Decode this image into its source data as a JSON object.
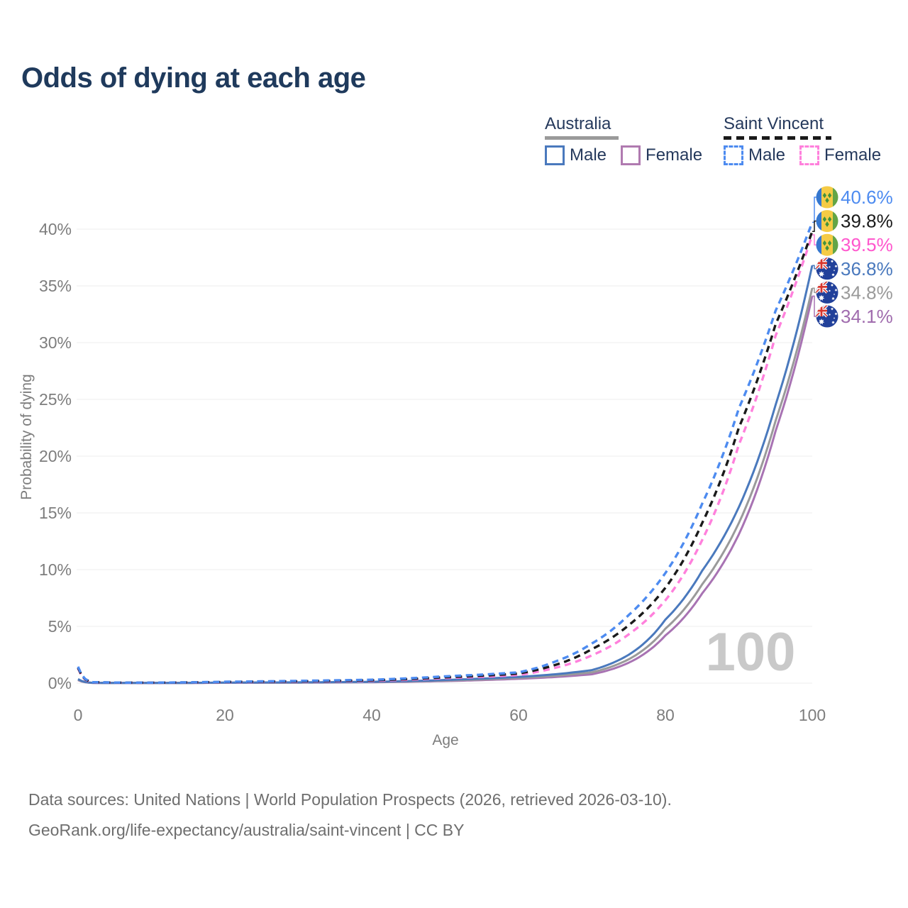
{
  "title": "Odds of dying at each age",
  "colors": {
    "title": "#1f3a5c",
    "legend_text": "#25395c",
    "axis": "#7d7d7d",
    "grid": "#ececec",
    "watermark": "#c9c9c9",
    "footer": "#6e6e6e"
  },
  "legend": {
    "groups": [
      {
        "id": "australia",
        "label": "Australia",
        "line_style": "solid",
        "line_color": "#9a9a9a",
        "items": [
          {
            "id": "au_male",
            "label": "Male",
            "color": "#4a79bd",
            "dashed": false
          },
          {
            "id": "au_female",
            "label": "Female",
            "color": "#b07ab0",
            "dashed": false
          }
        ]
      },
      {
        "id": "saint_vincent",
        "label": "Saint Vincent",
        "line_style": "dashed",
        "line_color": "#1a1a1a",
        "items": [
          {
            "id": "sv_male",
            "label": "Male",
            "color": "#4d8bf0",
            "dashed": true
          },
          {
            "id": "sv_female",
            "label": "Female",
            "color": "#ff80dc",
            "dashed": true
          }
        ]
      }
    ]
  },
  "icons": {
    "saint_vincent_flag": {
      "blue": "#3577cf",
      "yellow": "#f5cb45",
      "green": "#63a546",
      "diamond": "#44923c"
    },
    "australia_flag": {
      "blue": "#21409a",
      "red": "#d8352c",
      "white": "#ffffff"
    }
  },
  "chart_data": {
    "type": "line",
    "title": "Odds of dying at each age",
    "xlabel": "Age",
    "ylabel": "Probability of dying",
    "xlim": [
      0,
      100
    ],
    "ylim": [
      0,
      43
    ],
    "grid": true,
    "legend_position": "top-right",
    "hover_age_label": "100",
    "xticks": [
      0,
      20,
      40,
      60,
      80,
      100
    ],
    "yticks": [
      {
        "value": 0,
        "label": "0%"
      },
      {
        "value": 5,
        "label": "5%"
      },
      {
        "value": 10,
        "label": "10%"
      },
      {
        "value": 15,
        "label": "15%"
      },
      {
        "value": 20,
        "label": "20%"
      },
      {
        "value": 25,
        "label": "25%"
      },
      {
        "value": 30,
        "label": "30%"
      },
      {
        "value": 35,
        "label": "35%"
      },
      {
        "value": 40,
        "label": "40%"
      }
    ],
    "control_ages": [
      0,
      2,
      5,
      10,
      20,
      30,
      40,
      50,
      55,
      60,
      65,
      70,
      75,
      80,
      85,
      90,
      95,
      100
    ],
    "series": [
      {
        "id": "sv_male",
        "name": "Saint Vincent Male",
        "country": "Saint Vincent",
        "sex": "Male",
        "style": "dashed",
        "color": "#4d8bf0",
        "label_color": "#4d8bf0",
        "flag": "saint-vincent",
        "end_label": "40.6%",
        "values": [
          1.45,
          0.09,
          0.05,
          0.04,
          0.12,
          0.2,
          0.3,
          0.6,
          0.75,
          0.95,
          1.9,
          3.5,
          6.0,
          9.7,
          15.8,
          24.2,
          32.8,
          40.6
        ]
      },
      {
        "id": "sv_combined",
        "name": "Saint Vincent Both sexes",
        "country": "Saint Vincent",
        "sex": "Both",
        "style": "dashed",
        "color": "#1a1a1a",
        "label_color": "#1a1a1a",
        "flag": "saint-vincent",
        "end_label": "39.8%",
        "values": [
          1.35,
          0.08,
          0.045,
          0.035,
          0.1,
          0.16,
          0.25,
          0.52,
          0.65,
          0.85,
          1.6,
          3.0,
          5.1,
          8.4,
          14.1,
          22.5,
          31.6,
          39.8
        ]
      },
      {
        "id": "sv_female",
        "name": "Saint Vincent Female",
        "country": "Saint Vincent",
        "sex": "Female",
        "style": "dashed",
        "color": "#ff80dc",
        "label_color": "#ff57cd",
        "flag": "saint-vincent",
        "end_label": "39.5%",
        "values": [
          1.3,
          0.07,
          0.04,
          0.03,
          0.08,
          0.13,
          0.2,
          0.45,
          0.55,
          0.72,
          1.35,
          2.45,
          4.3,
          7.3,
          12.6,
          21.0,
          30.6,
          39.5
        ]
      },
      {
        "id": "au_male",
        "name": "Australia Male",
        "country": "Australia",
        "sex": "Male",
        "style": "solid",
        "color": "#4a79bd",
        "label_color": "#4a79bd",
        "flag": "australia",
        "end_label": "36.8%",
        "values": [
          0.35,
          0.03,
          0.015,
          0.012,
          0.05,
          0.07,
          0.12,
          0.28,
          0.4,
          0.55,
          0.78,
          1.15,
          2.5,
          5.6,
          9.9,
          15.5,
          24.5,
          36.8
        ]
      },
      {
        "id": "au_combined",
        "name": "Australia Both sexes",
        "country": "Australia",
        "sex": "Both",
        "style": "solid",
        "color": "#9a9a9a",
        "label_color": "#9a9a9a",
        "flag": "australia",
        "end_label": "34.8%",
        "values": [
          0.3,
          0.025,
          0.013,
          0.01,
          0.04,
          0.05,
          0.1,
          0.23,
          0.33,
          0.46,
          0.65,
          0.95,
          2.1,
          4.8,
          8.7,
          14.1,
          23.1,
          34.8
        ]
      },
      {
        "id": "au_female",
        "name": "Australia Female",
        "country": "Australia",
        "sex": "Female",
        "style": "solid",
        "color": "#a873b3",
        "label_color": "#a06cae",
        "flag": "australia",
        "end_label": "34.1%",
        "values": [
          0.27,
          0.02,
          0.012,
          0.009,
          0.03,
          0.04,
          0.08,
          0.18,
          0.27,
          0.38,
          0.54,
          0.78,
          1.8,
          4.2,
          7.9,
          13.1,
          22.2,
          34.1
        ]
      }
    ]
  },
  "footer": {
    "line1": "Data sources: United Nations | World Population Prospects (2026, retrieved 2026-03-10).",
    "line2": "GeoRank.org/life-expectancy/australia/saint-vincent | CC BY"
  }
}
